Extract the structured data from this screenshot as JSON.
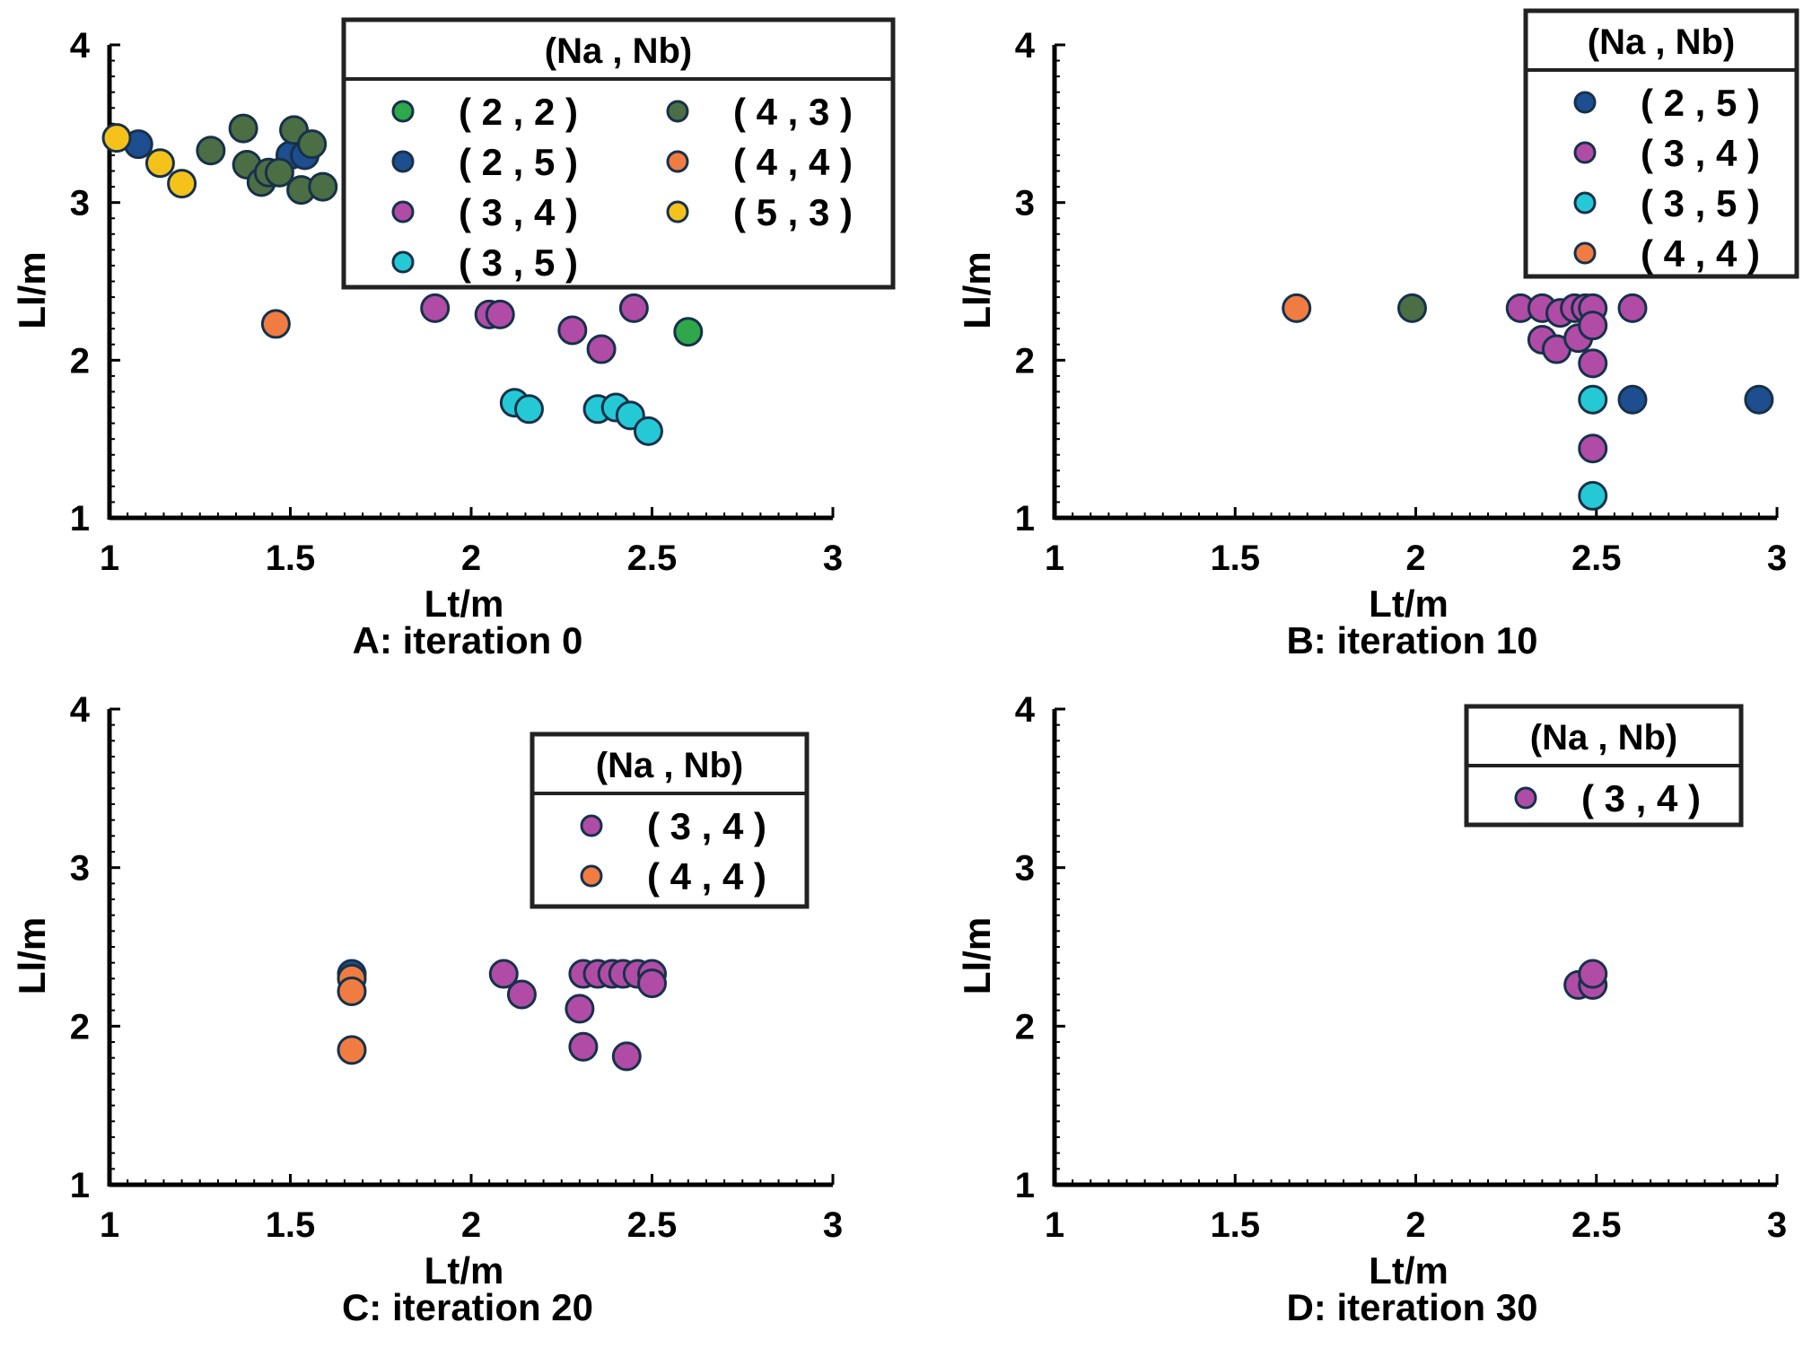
{
  "colors": {
    "(2,2)": "#2ea84a",
    "(2,5)": "#1d4e8f",
    "(3,4)": "#b04ca6",
    "(3,5)": "#25c9d6",
    "(4,3)": "#4c6e45",
    "(4,4)": "#f07c42",
    "(5,3)": "#f5c21b",
    "edge": "#17314a"
  },
  "chart_data": [
    {
      "type": "scatter",
      "id": "A",
      "caption": "A: iteration 0",
      "xlabel": "Lt/m",
      "ylabel": "Ll/m",
      "xlim": [
        1,
        3
      ],
      "ylim": [
        1,
        4
      ],
      "xticks": [
        "1",
        "1.5",
        "2",
        "2.5",
        "3"
      ],
      "yticks": [
        "1",
        "2",
        "3",
        "4"
      ],
      "legend": {
        "title": "(Na , Nb)",
        "columns": 2,
        "entries": [
          {
            "key": "(2,2)",
            "label": "( 2  , 2 )"
          },
          {
            "key": "(2,5)",
            "label": "( 2  , 5 )"
          },
          {
            "key": "(3,4)",
            "label": "( 3  , 4 )"
          },
          {
            "key": "(3,5)",
            "label": "( 3  , 5 )"
          },
          {
            "key": "(4,3)",
            "label": "( 4  , 3 )"
          },
          {
            "key": "(4,4)",
            "label": "( 4  , 4 )"
          },
          {
            "key": "(5,3)",
            "label": "( 5  , 3 )"
          }
        ]
      },
      "series": [
        {
          "key": "(2,2)",
          "points": [
            [
              2.6,
              2.18
            ]
          ]
        },
        {
          "key": "(2,5)",
          "points": [
            [
              1.08,
              3.37
            ],
            [
              1.5,
              3.3
            ],
            [
              1.54,
              3.3
            ]
          ]
        },
        {
          "key": "(3,4)",
          "points": [
            [
              1.9,
              2.33
            ],
            [
              2.05,
              2.29
            ],
            [
              2.08,
              2.29
            ],
            [
              2.28,
              2.19
            ],
            [
              2.36,
              2.07
            ],
            [
              2.45,
              2.33
            ]
          ]
        },
        {
          "key": "(3,5)",
          "points": [
            [
              2.12,
              1.73
            ],
            [
              2.16,
              1.69
            ],
            [
              2.35,
              1.69
            ],
            [
              2.4,
              1.7
            ],
            [
              2.44,
              1.65
            ],
            [
              2.49,
              1.55
            ]
          ]
        },
        {
          "key": "(4,3)",
          "points": [
            [
              1.28,
              3.33
            ],
            [
              1.37,
              3.47
            ],
            [
              1.38,
              3.24
            ],
            [
              1.42,
              3.13
            ],
            [
              1.44,
              3.19
            ],
            [
              1.47,
              3.19
            ],
            [
              1.51,
              3.46
            ],
            [
              1.53,
              3.08
            ],
            [
              1.56,
              3.37
            ],
            [
              1.59,
              3.1
            ]
          ]
        },
        {
          "key": "(4,4)",
          "points": [
            [
              1.46,
              2.23
            ]
          ]
        },
        {
          "key": "(5,3)",
          "points": [
            [
              1.02,
              3.41
            ],
            [
              1.14,
              3.25
            ],
            [
              1.2,
              3.12
            ]
          ]
        }
      ]
    },
    {
      "type": "scatter",
      "id": "B",
      "caption": "B: iteration 10",
      "xlabel": "Lt/m",
      "ylabel": "Ll/m",
      "xlim": [
        1,
        3
      ],
      "ylim": [
        1,
        4
      ],
      "xticks": [
        "1",
        "1.5",
        "2",
        "2.5",
        "3"
      ],
      "yticks": [
        "1",
        "2",
        "3",
        "4"
      ],
      "legend": {
        "title": "(Na , Nb)",
        "columns": 1,
        "entries": [
          {
            "key": "(2,5)",
            "label": "( 2  , 5 )"
          },
          {
            "key": "(3,4)",
            "label": "( 3  , 4 )"
          },
          {
            "key": "(3,5)",
            "label": "( 3  , 5 )"
          },
          {
            "key": "(4,4)",
            "label": "( 4  , 4 )"
          }
        ]
      },
      "series": [
        {
          "key": "(4,4)",
          "points": [
            [
              1.67,
              2.33
            ]
          ]
        },
        {
          "key": "(4,3)",
          "points": [
            [
              1.99,
              2.33
            ]
          ]
        },
        {
          "key": "(3,4)",
          "points": [
            [
              2.29,
              2.33
            ],
            [
              2.35,
              2.33
            ],
            [
              2.4,
              2.3
            ],
            [
              2.44,
              2.33
            ],
            [
              2.47,
              2.33
            ],
            [
              2.49,
              2.33
            ],
            [
              2.35,
              2.13
            ],
            [
              2.39,
              2.07
            ],
            [
              2.45,
              2.14
            ],
            [
              2.49,
              2.22
            ],
            [
              2.49,
              1.98
            ],
            [
              2.49,
              1.44
            ],
            [
              2.6,
              2.33
            ]
          ]
        },
        {
          "key": "(3,5)",
          "points": [
            [
              2.49,
              1.75
            ],
            [
              2.49,
              1.14
            ]
          ]
        },
        {
          "key": "(2,5)",
          "points": [
            [
              2.6,
              1.75
            ],
            [
              2.95,
              1.75
            ]
          ]
        }
      ]
    },
    {
      "type": "scatter",
      "id": "C",
      "caption": "C: iteration 20",
      "xlabel": "Lt/m",
      "ylabel": "Ll/m",
      "xlim": [
        1,
        3
      ],
      "ylim": [
        1,
        4
      ],
      "xticks": [
        "1",
        "1.5",
        "2",
        "2.5",
        "3"
      ],
      "yticks": [
        "1",
        "2",
        "3",
        "4"
      ],
      "legend": {
        "title": "(Na , Nb)",
        "columns": 1,
        "entries": [
          {
            "key": "(3,4)",
            "label": "( 3  , 4 )"
          },
          {
            "key": "(4,4)",
            "label": "( 4  , 4 )"
          }
        ]
      },
      "series": [
        {
          "key": "(2,5)",
          "points": [
            [
              1.67,
              2.33
            ]
          ]
        },
        {
          "key": "(4,4)",
          "points": [
            [
              1.67,
              2.3
            ],
            [
              1.67,
              2.22
            ],
            [
              1.67,
              1.85
            ]
          ]
        },
        {
          "key": "(3,4)",
          "points": [
            [
              2.09,
              2.33
            ],
            [
              2.14,
              2.2
            ],
            [
              2.3,
              2.11
            ],
            [
              2.31,
              2.33
            ],
            [
              2.35,
              2.33
            ],
            [
              2.39,
              2.33
            ],
            [
              2.42,
              2.33
            ],
            [
              2.46,
              2.33
            ],
            [
              2.5,
              2.33
            ],
            [
              2.5,
              2.27
            ],
            [
              2.31,
              1.87
            ],
            [
              2.43,
              1.81
            ]
          ]
        }
      ]
    },
    {
      "type": "scatter",
      "id": "D",
      "caption": "D: iteration 30",
      "xlabel": "Lt/m",
      "ylabel": "Ll/m",
      "xlim": [
        1,
        3
      ],
      "ylim": [
        1,
        4
      ],
      "xticks": [
        "1",
        "1.5",
        "2",
        "2.5",
        "3"
      ],
      "yticks": [
        "1",
        "2",
        "3",
        "4"
      ],
      "legend": {
        "title": "(Na , Nb)",
        "columns": 1,
        "entries": [
          {
            "key": "(3,4)",
            "label": "( 3  , 4 )"
          }
        ]
      },
      "series": [
        {
          "key": "(3,4)",
          "points": [
            [
              2.45,
              2.26
            ],
            [
              2.49,
              2.26
            ],
            [
              2.49,
              2.33
            ]
          ]
        }
      ]
    }
  ]
}
